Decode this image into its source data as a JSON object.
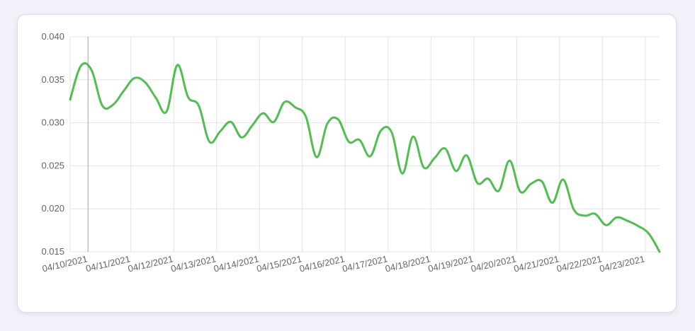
{
  "colors": {
    "background": "#f2f2fa",
    "card": "#ffffff",
    "line": "#4fc04f",
    "grid": "#e3e3e3",
    "label": "#666666",
    "cursor": "#a8a8a8"
  },
  "chart_data": {
    "type": "line",
    "title": "",
    "xlabel": "",
    "ylabel": "",
    "ylim": [
      0.015,
      0.04
    ],
    "yticks": [
      "0.040",
      "0.035",
      "0.030",
      "0.025",
      "0.020",
      "0.015"
    ],
    "ytick_values": [
      0.04,
      0.035,
      0.03,
      0.025,
      0.02,
      0.015
    ],
    "xlim": [
      "04/09/2021 14:00",
      "04/23/2021 08:00"
    ],
    "xticks": [
      "04/10/2021",
      "04/11/2021",
      "04/12/2021",
      "04/13/2021",
      "04/14/2021",
      "04/15/2021",
      "04/16/2021",
      "04/17/2021",
      "04/18/2021",
      "04/19/2021",
      "04/20/2021",
      "04/21/2021",
      "04/22/2021",
      "04/23/2021"
    ],
    "grid": true,
    "legend": "none",
    "hover_date": "04/10/2021",
    "series": [
      {
        "color": "#4fc04f",
        "x": [
          "04/09/2021 14:00",
          "04/09/2021 20:00",
          "04/10/2021 02:00",
          "04/10/2021 08:00",
          "04/10/2021 14:00",
          "04/10/2021 20:00",
          "04/11/2021 02:00",
          "04/11/2021 08:00",
          "04/11/2021 14:00",
          "04/11/2021 20:00",
          "04/12/2021 02:00",
          "04/12/2021 08:00",
          "04/12/2021 14:00",
          "04/12/2021 20:00",
          "04/13/2021 02:00",
          "04/13/2021 08:00",
          "04/13/2021 14:00",
          "04/13/2021 20:00",
          "04/14/2021 02:00",
          "04/14/2021 08:00",
          "04/14/2021 14:00",
          "04/14/2021 20:00",
          "04/15/2021 02:00",
          "04/15/2021 08:00",
          "04/15/2021 14:00",
          "04/15/2021 20:00",
          "04/16/2021 02:00",
          "04/16/2021 08:00",
          "04/16/2021 14:00",
          "04/16/2021 20:00",
          "04/17/2021 02:00",
          "04/17/2021 08:00",
          "04/17/2021 14:00",
          "04/17/2021 20:00",
          "04/18/2021 02:00",
          "04/18/2021 08:00",
          "04/18/2021 14:00",
          "04/18/2021 20:00",
          "04/19/2021 02:00",
          "04/19/2021 08:00",
          "04/19/2021 14:00",
          "04/19/2021 20:00",
          "04/20/2021 02:00",
          "04/20/2021 08:00",
          "04/20/2021 14:00",
          "04/20/2021 20:00",
          "04/21/2021 02:00",
          "04/21/2021 08:00",
          "04/21/2021 14:00",
          "04/21/2021 20:00",
          "04/22/2021 02:00",
          "04/22/2021 08:00",
          "04/22/2021 14:00",
          "04/22/2021 20:00",
          "04/23/2021 02:00",
          "04/23/2021 08:00"
        ],
        "y": [
          0.0327,
          0.0366,
          0.0361,
          0.032,
          0.0321,
          0.0337,
          0.0352,
          0.0347,
          0.0329,
          0.0313,
          0.0367,
          0.033,
          0.032,
          0.0278,
          0.029,
          0.0301,
          0.0283,
          0.0297,
          0.0311,
          0.0301,
          0.0324,
          0.0318,
          0.0307,
          0.026,
          0.0299,
          0.0304,
          0.0278,
          0.028,
          0.0261,
          0.0291,
          0.0289,
          0.0241,
          0.0284,
          0.0248,
          0.0259,
          0.027,
          0.0244,
          0.0262,
          0.023,
          0.0235,
          0.0221,
          0.0256,
          0.022,
          0.0229,
          0.0232,
          0.0207,
          0.0234,
          0.0199,
          0.0192,
          0.0194,
          0.0181,
          0.019,
          0.0186,
          0.018,
          0.0171,
          0.015
        ]
      }
    ]
  }
}
